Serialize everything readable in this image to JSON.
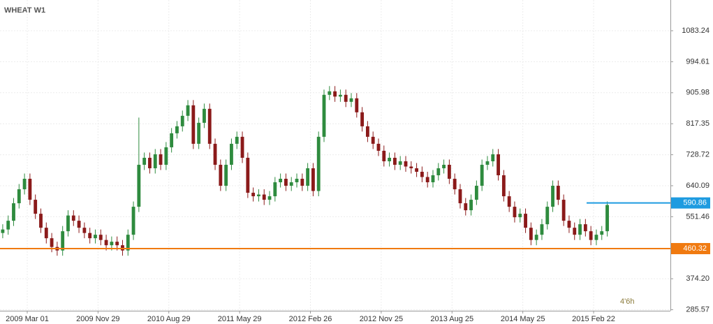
{
  "chart_data": {
    "type": "candlestick",
    "title": "WHEAT W1",
    "annotation": "4'6h",
    "up_color": "#2e8b3e",
    "down_color": "#8b1a1a",
    "grid": true,
    "xlim": [
      -0.5,
      122.6
    ],
    "ylim": [
      282.7,
      1171.1
    ],
    "xticks": [
      {
        "value": 4.5,
        "label": "2009 Mar 01"
      },
      {
        "value": 17.5,
        "label": "2009 Nov 29"
      },
      {
        "value": 30.5,
        "label": "2010 Aug 29"
      },
      {
        "value": 43.5,
        "label": "2011 May 29"
      },
      {
        "value": 56.5,
        "label": "2012 Feb 26"
      },
      {
        "value": 69.5,
        "label": "2012 Nov 25"
      },
      {
        "value": 82.5,
        "label": "2013 Aug 25"
      },
      {
        "value": 95.5,
        "label": "2014 May 25"
      },
      {
        "value": 108.5,
        "label": "2015 Feb 22"
      }
    ],
    "yticks": [
      1083.24,
      994.61,
      905.98,
      817.35,
      728.72,
      640.09,
      551.46,
      {
        "value": 374.2,
        "label": "374.20"
      },
      285.57
    ],
    "levels": [
      {
        "value": 590.86,
        "color": "#1e9be0"
      },
      {
        "value": 460.32,
        "color": "#f07a10"
      }
    ],
    "open": [
      505,
      515,
      540,
      590,
      630,
      660,
      600,
      560,
      520,
      490,
      465,
      455,
      510,
      555,
      540,
      520,
      505,
      490,
      500,
      485,
      470,
      480,
      470,
      455,
      500,
      580,
      700,
      720,
      690,
      730,
      700,
      750,
      790,
      810,
      840,
      870,
      760,
      820,
      860,
      760,
      700,
      640,
      700,
      760,
      780,
      720,
      620,
      610,
      615,
      600,
      610,
      650,
      660,
      640,
      650,
      660,
      640,
      690,
      625,
      780,
      900,
      910,
      895,
      900,
      880,
      890,
      850,
      810,
      780,
      760,
      740,
      710,
      720,
      700,
      710,
      695,
      690,
      680,
      665,
      650,
      670,
      690,
      700,
      660,
      630,
      590,
      570,
      600,
      640,
      700,
      710,
      730,
      670,
      610,
      580,
      550,
      560,
      520,
      485,
      500,
      530,
      580,
      640,
      600,
      540,
      520,
      500,
      530,
      510,
      485,
      500,
      510
    ],
    "high": [
      530,
      555,
      605,
      645,
      675,
      675,
      615,
      575,
      535,
      505,
      480,
      525,
      570,
      570,
      555,
      535,
      520,
      515,
      515,
      500,
      495,
      495,
      485,
      515,
      595,
      835,
      735,
      735,
      745,
      745,
      765,
      805,
      825,
      855,
      885,
      885,
      835,
      875,
      875,
      775,
      715,
      715,
      775,
      795,
      795,
      735,
      635,
      630,
      630,
      625,
      665,
      675,
      675,
      665,
      675,
      675,
      705,
      705,
      795,
      915,
      925,
      925,
      915,
      915,
      905,
      905,
      865,
      825,
      795,
      775,
      755,
      735,
      735,
      725,
      725,
      710,
      705,
      695,
      680,
      685,
      705,
      715,
      715,
      675,
      645,
      605,
      615,
      655,
      715,
      725,
      745,
      745,
      685,
      625,
      595,
      575,
      575,
      535,
      515,
      545,
      595,
      655,
      655,
      615,
      555,
      535,
      545,
      545,
      525,
      515,
      525,
      595
    ],
    "low": [
      490,
      500,
      525,
      575,
      615,
      585,
      545,
      505,
      475,
      450,
      440,
      440,
      495,
      525,
      505,
      490,
      475,
      475,
      470,
      455,
      455,
      455,
      440,
      440,
      485,
      565,
      685,
      675,
      675,
      685,
      685,
      735,
      775,
      795,
      825,
      745,
      745,
      805,
      745,
      685,
      625,
      625,
      685,
      745,
      705,
      605,
      595,
      595,
      585,
      585,
      595,
      635,
      625,
      625,
      635,
      625,
      625,
      610,
      610,
      765,
      885,
      880,
      880,
      865,
      865,
      835,
      795,
      765,
      745,
      725,
      695,
      695,
      685,
      685,
      680,
      675,
      665,
      650,
      635,
      635,
      655,
      675,
      645,
      615,
      575,
      555,
      555,
      585,
      625,
      685,
      695,
      655,
      595,
      565,
      535,
      535,
      505,
      470,
      470,
      485,
      515,
      565,
      585,
      525,
      505,
      485,
      485,
      495,
      470,
      470,
      485,
      495
    ],
    "close": [
      515,
      540,
      590,
      630,
      660,
      600,
      560,
      520,
      490,
      465,
      455,
      510,
      555,
      540,
      520,
      505,
      490,
      500,
      485,
      470,
      480,
      470,
      455,
      500,
      580,
      700,
      720,
      690,
      730,
      700,
      750,
      790,
      810,
      840,
      870,
      760,
      820,
      860,
      760,
      700,
      640,
      700,
      760,
      780,
      720,
      620,
      610,
      615,
      600,
      610,
      650,
      660,
      640,
      650,
      660,
      640,
      690,
      625,
      780,
      900,
      910,
      895,
      900,
      880,
      890,
      850,
      810,
      780,
      760,
      740,
      710,
      720,
      700,
      710,
      695,
      690,
      680,
      665,
      650,
      670,
      690,
      700,
      660,
      630,
      590,
      570,
      600,
      640,
      700,
      710,
      730,
      670,
      610,
      580,
      550,
      560,
      520,
      485,
      500,
      530,
      580,
      640,
      600,
      540,
      520,
      500,
      530,
      510,
      485,
      500,
      510,
      585
    ]
  }
}
